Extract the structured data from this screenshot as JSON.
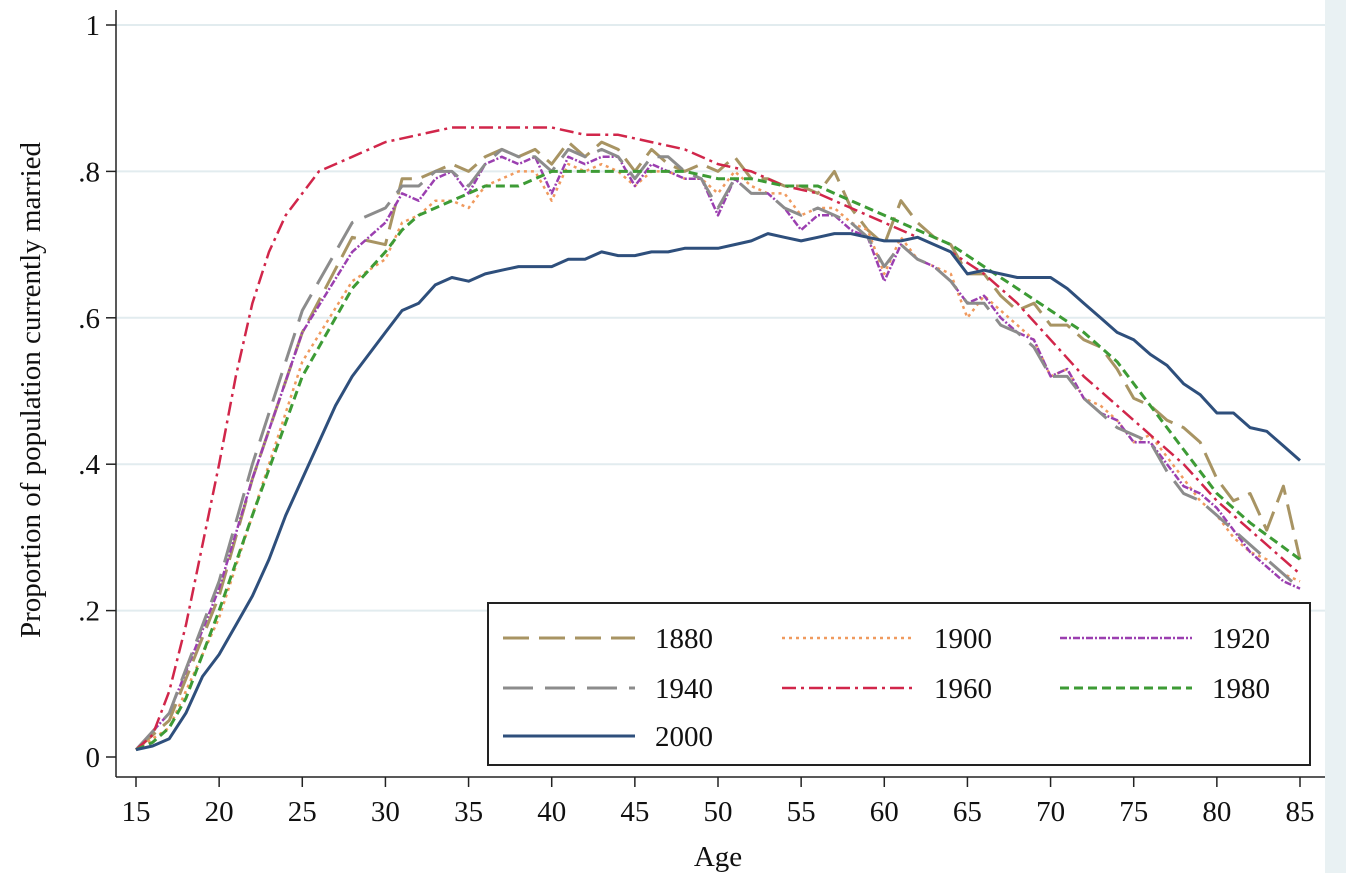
{
  "chart_data": {
    "type": "line",
    "xlabel": "Age",
    "ylabel": "Proportion of population currently married",
    "xlim": [
      15,
      85
    ],
    "ylim": [
      0,
      1
    ],
    "xticks": [
      15,
      20,
      25,
      30,
      35,
      40,
      45,
      50,
      55,
      60,
      65,
      70,
      75,
      80,
      85
    ],
    "yticks": [
      {
        "value": 0,
        "label": "0"
      },
      {
        "value": 0.2,
        "label": ".2"
      },
      {
        "value": 0.4,
        "label": ".4"
      },
      {
        "value": 0.6,
        "label": ".6"
      },
      {
        "value": 0.8,
        "label": ".8"
      },
      {
        "value": 1,
        "label": "1"
      }
    ],
    "grid": "horizontal",
    "legend_position": "bottom-right",
    "series": [
      {
        "name": "1880",
        "color": "#a89463",
        "dash": "26 10",
        "width": 3,
        "x": [
          15,
          17,
          20,
          22,
          25,
          28,
          30,
          31,
          32,
          33,
          34,
          35,
          36,
          37,
          38,
          39,
          40,
          41,
          42,
          43,
          44,
          45,
          46,
          47,
          48,
          49,
          50,
          51,
          52,
          53,
          54,
          55,
          56,
          57,
          58,
          59,
          60,
          61,
          62,
          63,
          64,
          65,
          66,
          67,
          68,
          69,
          70,
          71,
          72,
          73,
          74,
          75,
          76,
          77,
          78,
          79,
          80,
          81,
          82,
          83,
          84,
          85
        ],
        "y": [
          0.01,
          0.05,
          0.22,
          0.38,
          0.58,
          0.71,
          0.7,
          0.79,
          0.79,
          0.8,
          0.81,
          0.8,
          0.82,
          0.83,
          0.82,
          0.83,
          0.81,
          0.84,
          0.82,
          0.84,
          0.83,
          0.8,
          0.83,
          0.81,
          0.8,
          0.81,
          0.8,
          0.82,
          0.79,
          0.79,
          0.78,
          0.78,
          0.77,
          0.8,
          0.75,
          0.72,
          0.7,
          0.76,
          0.73,
          0.71,
          0.7,
          0.66,
          0.66,
          0.63,
          0.61,
          0.62,
          0.59,
          0.59,
          0.57,
          0.56,
          0.53,
          0.49,
          0.48,
          0.46,
          0.45,
          0.43,
          0.38,
          0.35,
          0.36,
          0.31,
          0.37,
          0.27
        ]
      },
      {
        "name": "1900",
        "color": "#f09a5e",
        "dash": "3 4",
        "width": 2.5,
        "x": [
          15,
          17,
          20,
          22,
          25,
          28,
          30,
          31,
          32,
          33,
          34,
          35,
          36,
          37,
          38,
          39,
          40,
          41,
          42,
          43,
          44,
          45,
          46,
          47,
          48,
          49,
          50,
          51,
          52,
          53,
          54,
          55,
          56,
          57,
          58,
          59,
          60,
          61,
          62,
          63,
          64,
          65,
          66,
          67,
          68,
          69,
          70,
          71,
          72,
          73,
          74,
          75,
          76,
          77,
          78,
          79,
          80,
          81,
          82,
          83,
          84,
          85
        ],
        "y": [
          0.01,
          0.04,
          0.19,
          0.33,
          0.54,
          0.65,
          0.68,
          0.73,
          0.74,
          0.76,
          0.76,
          0.75,
          0.78,
          0.79,
          0.8,
          0.8,
          0.76,
          0.81,
          0.8,
          0.81,
          0.8,
          0.78,
          0.8,
          0.8,
          0.79,
          0.79,
          0.77,
          0.8,
          0.78,
          0.77,
          0.77,
          0.74,
          0.75,
          0.75,
          0.73,
          0.72,
          0.66,
          0.71,
          0.68,
          0.67,
          0.66,
          0.6,
          0.63,
          0.61,
          0.59,
          0.57,
          0.52,
          0.53,
          0.49,
          0.48,
          0.46,
          0.43,
          0.44,
          0.41,
          0.38,
          0.35,
          0.33,
          0.3,
          0.28,
          0.27,
          0.25,
          0.24
        ]
      },
      {
        "name": "1920",
        "color": "#9b3fb0",
        "dash": "7 2 2 2",
        "width": 2.5,
        "x": [
          15,
          17,
          20,
          22,
          25,
          28,
          30,
          31,
          32,
          33,
          34,
          35,
          36,
          37,
          38,
          39,
          40,
          41,
          42,
          43,
          44,
          45,
          46,
          47,
          48,
          49,
          50,
          51,
          52,
          53,
          54,
          55,
          56,
          57,
          58,
          59,
          60,
          61,
          62,
          63,
          64,
          65,
          66,
          67,
          68,
          69,
          70,
          71,
          72,
          73,
          74,
          75,
          76,
          77,
          78,
          79,
          80,
          81,
          82,
          83,
          84,
          85
        ],
        "y": [
          0.01,
          0.06,
          0.23,
          0.38,
          0.58,
          0.69,
          0.73,
          0.77,
          0.76,
          0.79,
          0.8,
          0.77,
          0.81,
          0.82,
          0.81,
          0.82,
          0.77,
          0.82,
          0.81,
          0.82,
          0.82,
          0.78,
          0.81,
          0.8,
          0.79,
          0.79,
          0.74,
          0.79,
          0.77,
          0.77,
          0.75,
          0.72,
          0.74,
          0.74,
          0.72,
          0.71,
          0.65,
          0.7,
          0.68,
          0.67,
          0.65,
          0.62,
          0.63,
          0.6,
          0.58,
          0.57,
          0.52,
          0.53,
          0.49,
          0.47,
          0.46,
          0.43,
          0.43,
          0.4,
          0.37,
          0.36,
          0.34,
          0.31,
          0.28,
          0.26,
          0.24,
          0.23
        ]
      },
      {
        "name": "1940",
        "color": "#8c8c8c",
        "dash": "30 12",
        "width": 3,
        "x": [
          15,
          17,
          20,
          22,
          25,
          28,
          30,
          31,
          32,
          33,
          34,
          35,
          36,
          37,
          38,
          39,
          40,
          41,
          42,
          43,
          44,
          45,
          46,
          47,
          48,
          49,
          50,
          51,
          52,
          53,
          54,
          55,
          56,
          57,
          58,
          59,
          60,
          61,
          62,
          63,
          64,
          65,
          66,
          67,
          68,
          69,
          70,
          71,
          72,
          73,
          74,
          75,
          76,
          77,
          78,
          79,
          80,
          81,
          82,
          83,
          84,
          85
        ],
        "y": [
          0.01,
          0.06,
          0.24,
          0.4,
          0.61,
          0.73,
          0.75,
          0.78,
          0.78,
          0.8,
          0.8,
          0.78,
          0.81,
          0.83,
          0.82,
          0.82,
          0.8,
          0.83,
          0.82,
          0.83,
          0.82,
          0.79,
          0.82,
          0.82,
          0.8,
          0.79,
          0.75,
          0.79,
          0.77,
          0.77,
          0.75,
          0.74,
          0.75,
          0.74,
          0.73,
          0.71,
          0.67,
          0.7,
          0.68,
          0.67,
          0.65,
          0.62,
          0.62,
          0.59,
          0.58,
          0.56,
          0.52,
          0.52,
          0.49,
          0.47,
          0.45,
          0.44,
          0.43,
          0.39,
          0.36,
          0.35,
          0.33,
          0.31,
          0.29,
          0.27,
          0.25,
          0.23
        ]
      },
      {
        "name": "1960",
        "color": "#d1264a",
        "dash": "14 5 3 5",
        "width": 2.5,
        "x": [
          15,
          16,
          17,
          18,
          19,
          20,
          21,
          22,
          23,
          24,
          25,
          26,
          27,
          28,
          30,
          32,
          34,
          35,
          36,
          38,
          40,
          42,
          44,
          46,
          48,
          50,
          52,
          54,
          56,
          58,
          60,
          62,
          64,
          66,
          68,
          70,
          72,
          74,
          76,
          78,
          80,
          82,
          85
        ],
        "y": [
          0.01,
          0.03,
          0.09,
          0.18,
          0.29,
          0.4,
          0.52,
          0.62,
          0.69,
          0.74,
          0.77,
          0.8,
          0.81,
          0.82,
          0.84,
          0.85,
          0.86,
          0.86,
          0.86,
          0.86,
          0.86,
          0.85,
          0.85,
          0.84,
          0.83,
          0.81,
          0.8,
          0.78,
          0.77,
          0.75,
          0.73,
          0.71,
          0.69,
          0.66,
          0.62,
          0.57,
          0.52,
          0.48,
          0.44,
          0.4,
          0.35,
          0.31,
          0.25
        ]
      },
      {
        "name": "1980",
        "color": "#3d9b35",
        "dash": "9 5",
        "width": 3,
        "x": [
          15,
          16,
          17,
          18,
          19,
          20,
          22,
          25,
          28,
          30,
          31,
          32,
          33,
          34,
          35,
          36,
          38,
          40,
          42,
          44,
          46,
          48,
          50,
          52,
          54,
          56,
          58,
          60,
          62,
          64,
          66,
          68,
          70,
          72,
          74,
          76,
          78,
          80,
          82,
          85
        ],
        "y": [
          0.01,
          0.02,
          0.04,
          0.08,
          0.14,
          0.2,
          0.33,
          0.52,
          0.64,
          0.69,
          0.72,
          0.74,
          0.75,
          0.76,
          0.77,
          0.78,
          0.78,
          0.8,
          0.8,
          0.8,
          0.8,
          0.8,
          0.79,
          0.79,
          0.78,
          0.78,
          0.76,
          0.74,
          0.72,
          0.7,
          0.67,
          0.64,
          0.61,
          0.58,
          0.54,
          0.48,
          0.42,
          0.36,
          0.32,
          0.27
        ]
      },
      {
        "name": "2000",
        "color": "#2e4f7c",
        "dash": "",
        "width": 3,
        "x": [
          15,
          16,
          17,
          18,
          19,
          20,
          21,
          22,
          23,
          24,
          25,
          26,
          27,
          28,
          29,
          30,
          31,
          32,
          33,
          34,
          35,
          36,
          37,
          38,
          39,
          40,
          41,
          42,
          43,
          44,
          45,
          46,
          47,
          48,
          49,
          50,
          51,
          52,
          53,
          54,
          55,
          56,
          57,
          58,
          59,
          60,
          61,
          62,
          63,
          64,
          65,
          66,
          67,
          68,
          69,
          70,
          71,
          72,
          73,
          74,
          75,
          76,
          77,
          78,
          79,
          80,
          81,
          82,
          83,
          84,
          85
        ],
        "y": [
          0.01,
          0.015,
          0.025,
          0.06,
          0.11,
          0.14,
          0.18,
          0.22,
          0.27,
          0.33,
          0.38,
          0.43,
          0.48,
          0.52,
          0.55,
          0.58,
          0.61,
          0.62,
          0.645,
          0.655,
          0.65,
          0.66,
          0.665,
          0.67,
          0.67,
          0.67,
          0.68,
          0.68,
          0.69,
          0.685,
          0.685,
          0.69,
          0.69,
          0.695,
          0.695,
          0.695,
          0.7,
          0.705,
          0.715,
          0.71,
          0.705,
          0.71,
          0.715,
          0.715,
          0.71,
          0.705,
          0.705,
          0.71,
          0.7,
          0.69,
          0.66,
          0.665,
          0.66,
          0.655,
          0.655,
          0.655,
          0.64,
          0.62,
          0.6,
          0.58,
          0.57,
          0.55,
          0.535,
          0.51,
          0.495,
          0.47,
          0.47,
          0.45,
          0.445,
          0.425,
          0.405
        ]
      }
    ]
  }
}
